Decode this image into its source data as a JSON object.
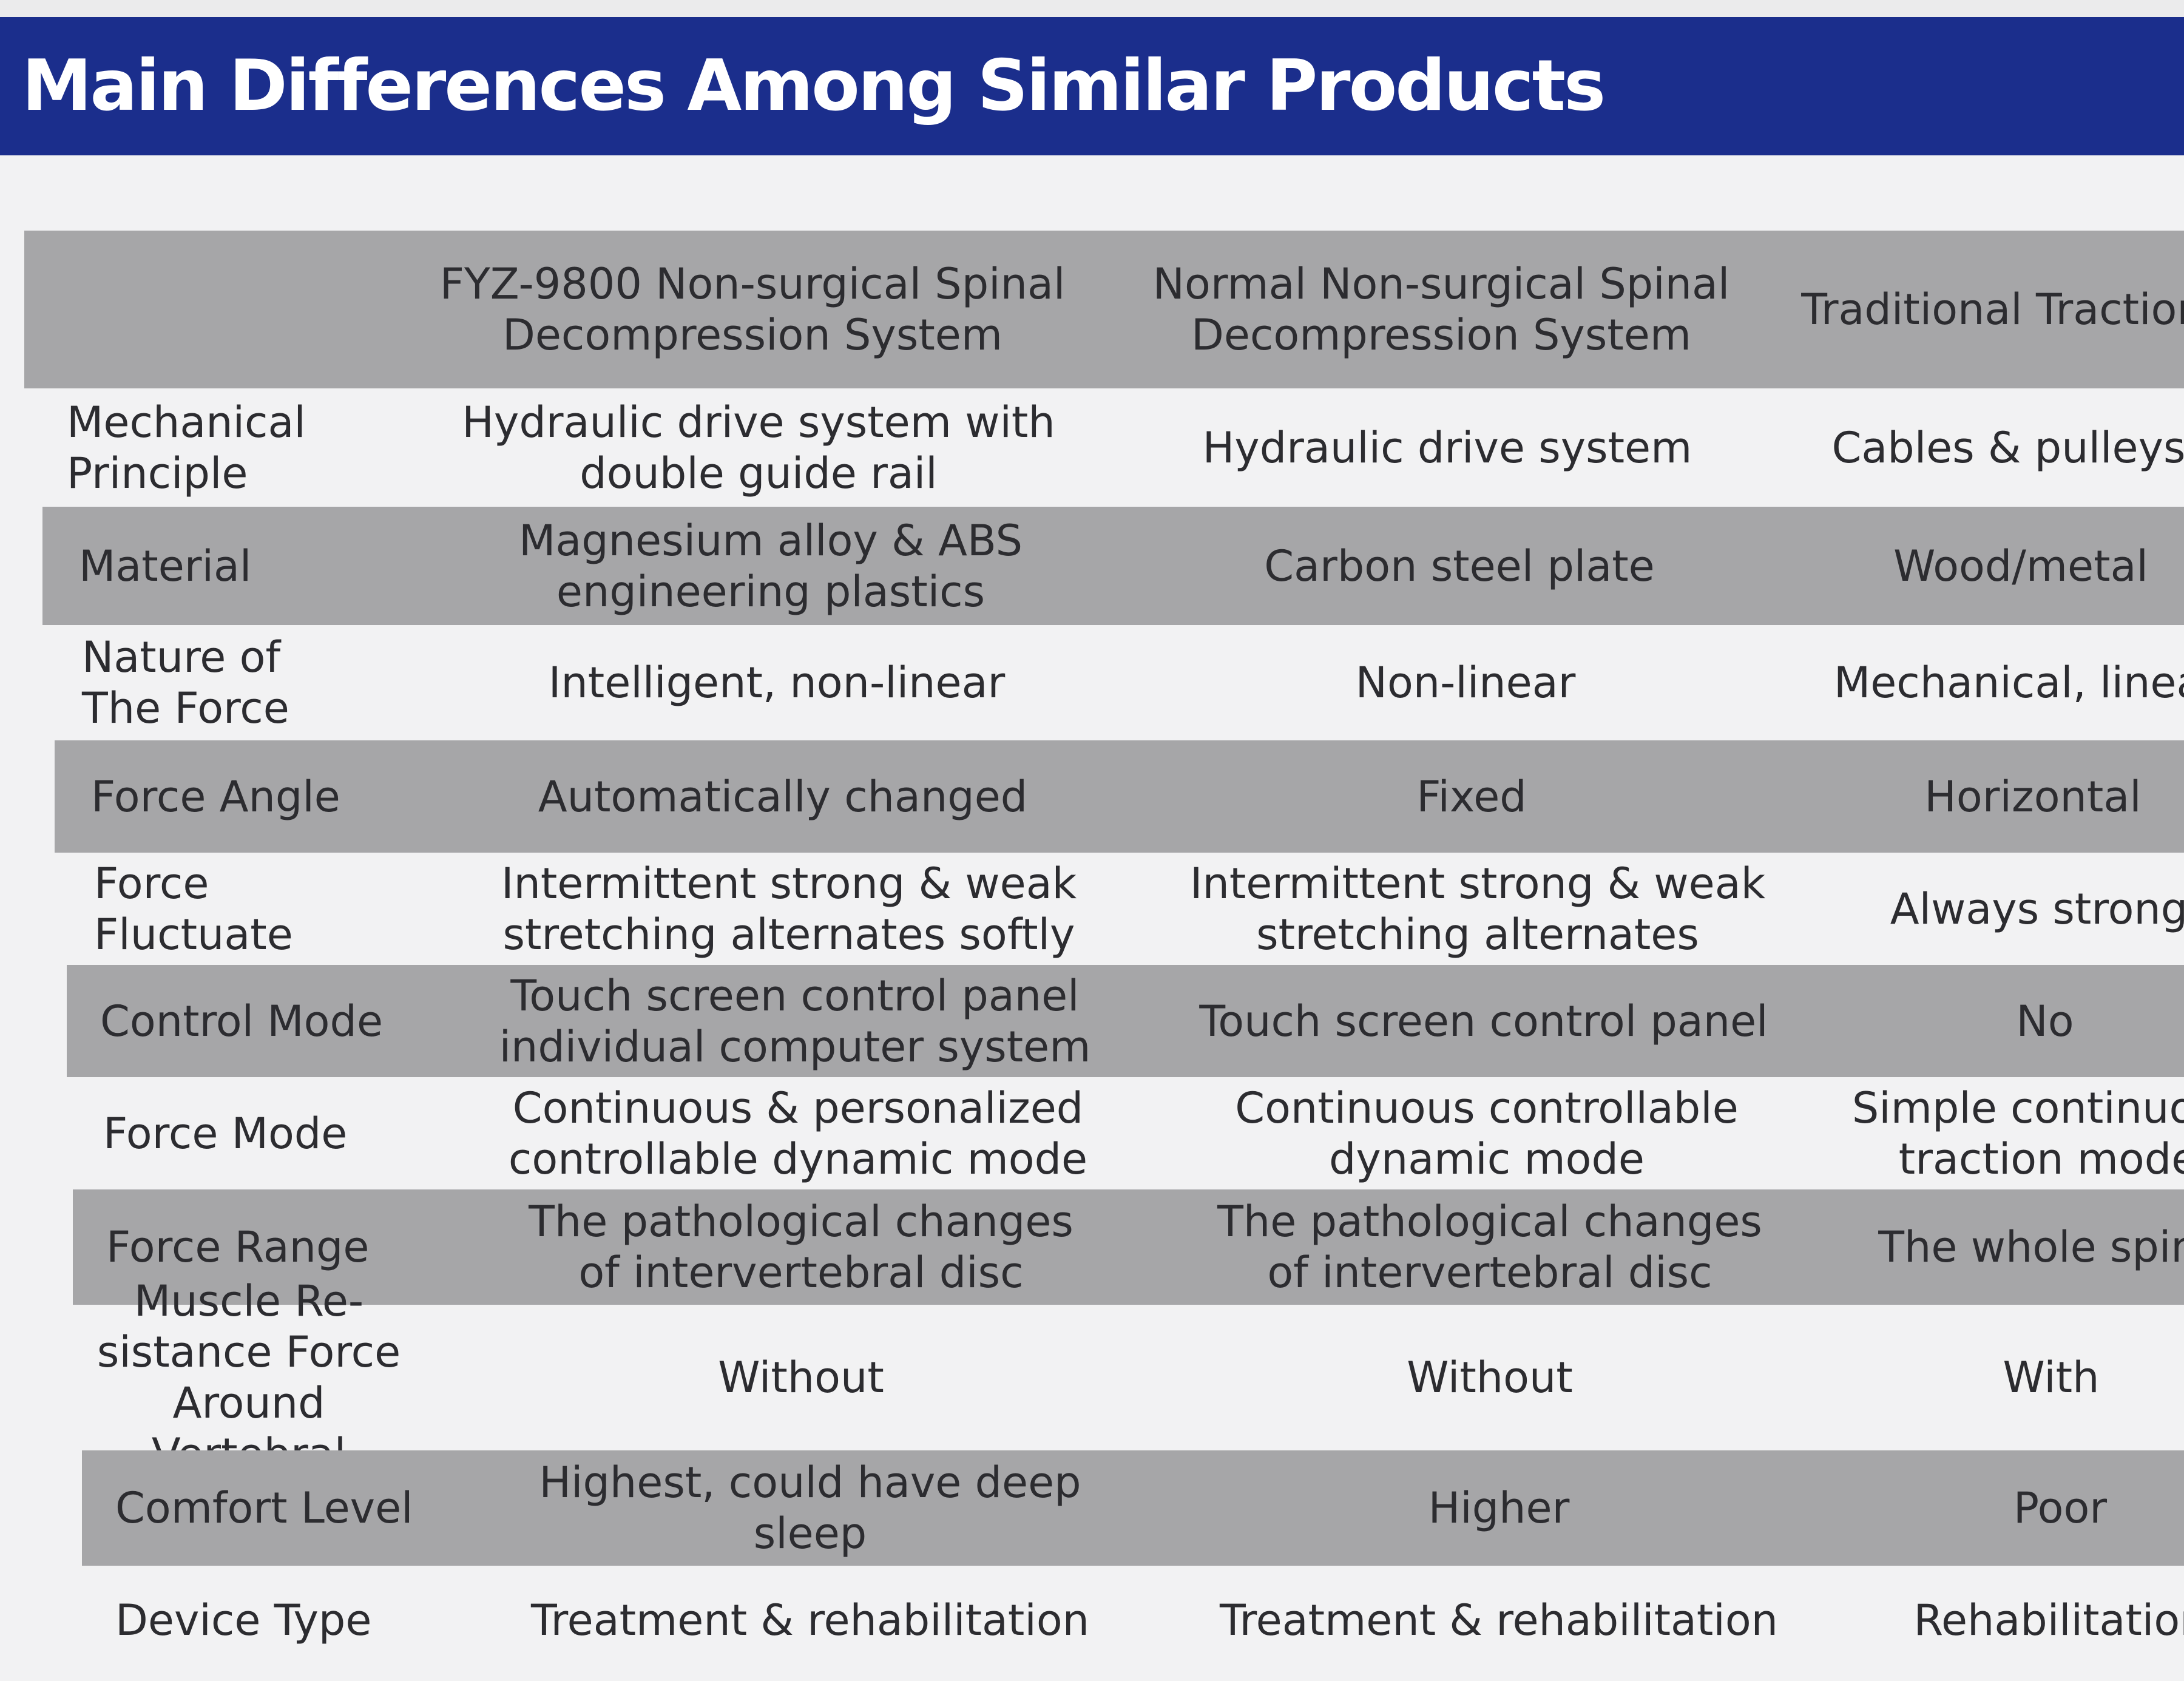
{
  "title": "Main Differences Among Similar Products",
  "colors": {
    "banner": "#1b2e8c",
    "shaded_row": "#a6a6a8",
    "background": "#f2f2f3",
    "text": "#2c2c30"
  },
  "table": {
    "headers": [
      "",
      "FYZ-9800 Non-surgical Spinal\nDecompression System",
      "Normal Non-surgical Spinal\nDecompression System",
      "Traditional Traction"
    ],
    "rows": [
      {
        "label": "Mechanical\nPrinciple",
        "values": [
          "Hydraulic drive system with\ndouble guide rail",
          "Hydraulic drive system",
          "Cables & pulleys"
        ]
      },
      {
        "label": "Material",
        "values": [
          "Magnesium alloy & ABS\nengineering plastics",
          "Carbon steel plate",
          "Wood/metal"
        ]
      },
      {
        "label": "Nature of\nThe Force",
        "values": [
          "Intelligent, non-linear",
          "Non-linear",
          "Mechanical, linear"
        ]
      },
      {
        "label": "Force Angle",
        "values": [
          "Automatically changed",
          "Fixed",
          "Horizontal"
        ]
      },
      {
        "label": "Force\nFluctuate",
        "values": [
          "Intermittent strong & weak\nstretching alternates softly",
          "Intermittent strong & weak\nstretching alternates",
          "Always strong"
        ]
      },
      {
        "label": "Control Mode",
        "values": [
          "Touch screen control panel\nindividual computer system",
          "Touch screen control panel",
          "No"
        ]
      },
      {
        "label": "Force Mode",
        "values": [
          "Continuous & personalized\ncontrollable dynamic mode",
          "Continuous controllable\ndynamic mode",
          "Simple continuous\ntraction mode"
        ]
      },
      {
        "label": "Force Range",
        "values": [
          "The pathological changes\nof intervertebral disc",
          "The pathological changes\nof intervertebral disc",
          "The whole spine"
        ]
      },
      {
        "label": "Muscle Re-\nsistance Force\nAround Vertebral",
        "values": [
          "Without",
          "Without",
          "With"
        ]
      },
      {
        "label": "Comfort Level",
        "values": [
          "Highest, could have deep\nsleep",
          "Higher",
          "Poor"
        ]
      },
      {
        "label": "Device Type",
        "values": [
          "Treatment & rehabilitation",
          "Treatment & rehabilitation",
          "Rehabilitation"
        ]
      }
    ]
  }
}
